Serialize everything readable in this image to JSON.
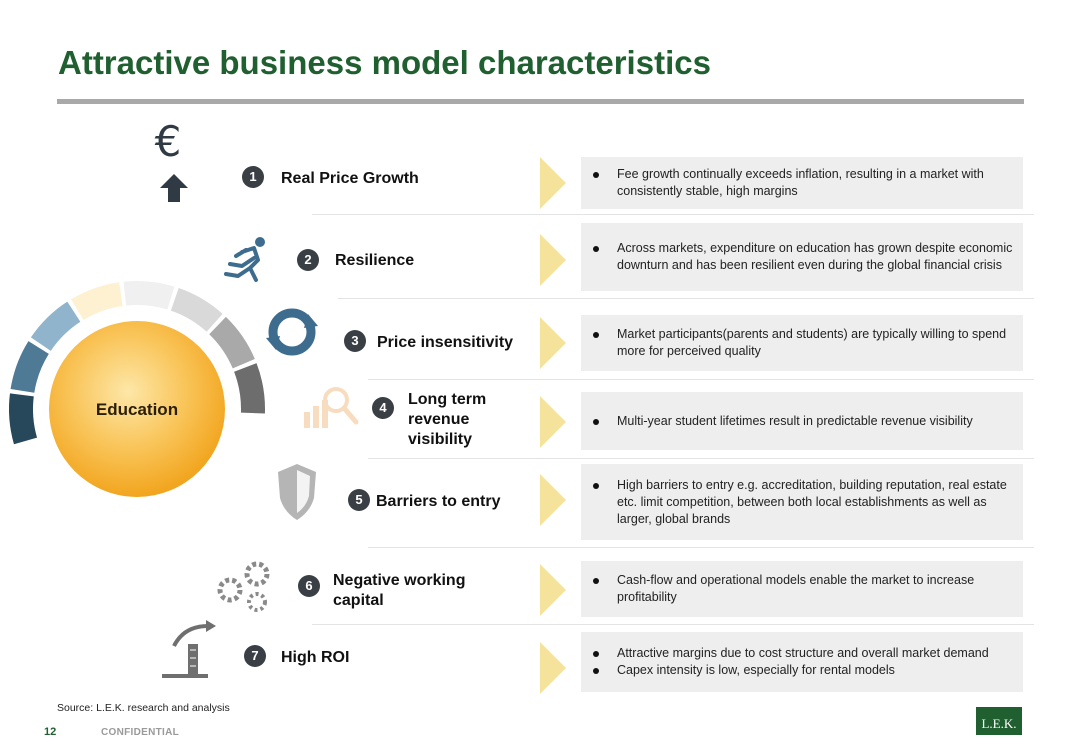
{
  "title": "Attractive business model characteristics",
  "center_label": "Education",
  "rows": [
    {
      "num": "1",
      "label": "Real Price Growth",
      "bullets": [
        "Fee growth continually exceeds inflation, resulting in a market with consistently stable, high margins"
      ],
      "icon": "euro-up-icon"
    },
    {
      "num": "2",
      "label": "Resilience",
      "bullets": [
        "Across markets, expenditure on education has grown despite economic downturn and has been resilient even during the global financial crisis"
      ],
      "icon": "runner-icon"
    },
    {
      "num": "3",
      "label": "Price insensitivity",
      "bullets": [
        "Market participants(parents and students) are typically willing to spend more for perceived quality"
      ],
      "icon": "cycle-icon"
    },
    {
      "num": "4",
      "label_lines": [
        "Long term",
        "revenue",
        "visibility"
      ],
      "bullets": [
        "Multi-year student lifetimes result in predictable revenue visibility"
      ],
      "icon": "magnifier-chart-icon"
    },
    {
      "num": "5",
      "label": "Barriers to entry",
      "bullets": [
        "High barriers to entry e.g. accreditation, building reputation, real estate etc. limit competition, between both local establishments as well as larger, global brands"
      ],
      "icon": "shield-icon"
    },
    {
      "num": "6",
      "label_lines": [
        "Negative working",
        "capital"
      ],
      "bullets": [
        "Cash-flow and operational models enable the market to increase profitability"
      ],
      "icon": "gears-icon"
    },
    {
      "num": "7",
      "label": "High ROI",
      "bullets": [
        "Attractive margins due to cost structure and overall market demand",
        "Capex intensity is low, especially for rental models"
      ],
      "icon": "roi-arrow-icon"
    }
  ],
  "footer": {
    "source": "Source: L.E.K. research and analysis",
    "page": "12",
    "confidential": "CONFIDENTIAL",
    "logo": "L.E.K."
  },
  "colors": {
    "title": "#1f5f30",
    "center_fill": "#f7b733",
    "arrow": "#f6e39b",
    "ring": [
      "#27475a",
      "#4f7a96",
      "#8fb4cc",
      "#fdf1d2",
      "#f0f0f0",
      "#d9d9d9",
      "#a9a9a9",
      "#6d6d6d"
    ]
  }
}
